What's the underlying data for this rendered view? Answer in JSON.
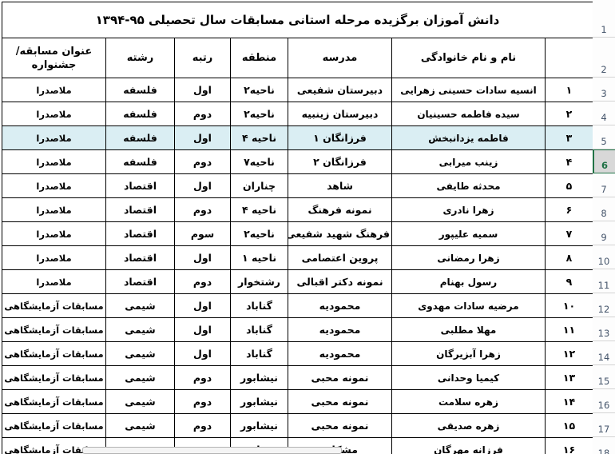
{
  "title": "دانش آموزان برگزیده مرحله استانی مسابقات سال تحصیلی ۹۵-۱۳۹۴",
  "header": {
    "rownum": "",
    "name": "نام و نام خانوادگی",
    "school": "مدرسه",
    "district": "منطقه",
    "rank": "رتبه",
    "field": "رشته",
    "contest_line1": "عنوان مسابقه/",
    "contest_line2": "جشنواره"
  },
  "rows": [
    {
      "num": "۱",
      "name": "انسیه سادات حسینی زهرایی",
      "school": "دبیرستان شفیعی",
      "district": "ناحیه۲",
      "rank": "اول",
      "field": "فلسفه",
      "contest": "ملاصدرا",
      "highlight": false
    },
    {
      "num": "۲",
      "name": "سیده فاطمه حسینیان",
      "school": "دبیرستان زینبیه",
      "district": "ناحیه۲",
      "rank": "دوم",
      "field": "فلسفه",
      "contest": "ملاصدرا",
      "highlight": false
    },
    {
      "num": "۳",
      "name": "فاطمه یزدانبخش",
      "school": "فرزانگان ۱",
      "district": "ناحیه ۴",
      "rank": "اول",
      "field": "فلسفه",
      "contest": "ملاصدرا",
      "highlight": true
    },
    {
      "num": "۴",
      "name": "زینب میرابی",
      "school": "فرزانگان ۲",
      "district": "ناحیه۷",
      "rank": "دوم",
      "field": "فلسفه",
      "contest": "ملاصدرا",
      "highlight": false
    },
    {
      "num": "۵",
      "name": "محدثه طایفی",
      "school": "شاهد",
      "district": "چناران",
      "rank": "اول",
      "field": "اقتصاد",
      "contest": "ملاصدرا",
      "highlight": false
    },
    {
      "num": "۶",
      "name": "زهرا نادری",
      "school": "نمونه فرهنگ",
      "district": "ناحیه ۴",
      "rank": "دوم",
      "field": "اقتصاد",
      "contest": "ملاصدرا",
      "highlight": false
    },
    {
      "num": "۷",
      "name": "سمیه علیپور",
      "school": "فرهنگ شهید شفیعی",
      "district": "ناحیه۲",
      "rank": "سوم",
      "field": "اقتصاد",
      "contest": "ملاصدرا",
      "highlight": false
    },
    {
      "num": "۸",
      "name": "زهرا رمضانی",
      "school": "پروین اعتصامی",
      "district": "ناحیه ۱",
      "rank": "اول",
      "field": "اقتصاد",
      "contest": "ملاصدرا",
      "highlight": false
    },
    {
      "num": "۹",
      "name": "رسول بهنام",
      "school": "نمونه دکتر اقبالی",
      "district": "رشتخوار",
      "rank": "دوم",
      "field": "اقتصاد",
      "contest": "ملاصدرا",
      "highlight": false
    },
    {
      "num": "۱۰",
      "name": "مرضیه سادات مهدوی",
      "school": "محمودیه",
      "district": "گناباد",
      "rank": "اول",
      "field": "شیمی",
      "contest": "مسابقات آزمایشگاهی",
      "highlight": false
    },
    {
      "num": "۱۱",
      "name": "مهلا مطلبی",
      "school": "محمودیه",
      "district": "گناباد",
      "rank": "اول",
      "field": "شیمی",
      "contest": "مسابقات آزمایشگاهی",
      "highlight": false
    },
    {
      "num": "۱۲",
      "name": "زهرا آبزیرگان",
      "school": "محمودیه",
      "district": "گناباد",
      "rank": "اول",
      "field": "شیمی",
      "contest": "مسابقات آزمایشگاهی",
      "highlight": false
    },
    {
      "num": "۱۳",
      "name": "کیمیا وحدانی",
      "school": "نمونه محبی",
      "district": "نیشابور",
      "rank": "دوم",
      "field": "شیمی",
      "contest": "مسابقات آزمایشگاهی",
      "highlight": false
    },
    {
      "num": "۱۴",
      "name": "زهره سلامت",
      "school": "نمونه محبی",
      "district": "نیشابور",
      "rank": "دوم",
      "field": "شیمی",
      "contest": "مسابقات آزمایشگاهی",
      "highlight": false
    },
    {
      "num": "۱۵",
      "name": "زهره صدیقی",
      "school": "نمونه محبی",
      "district": "نیشابور",
      "rank": "دوم",
      "field": "شیمی",
      "contest": "مسابقات آزمایشگاهی",
      "highlight": false
    },
    {
      "num": "۱۶",
      "name": "فرزانه مهرگان",
      "school": "مشکات",
      "district": "خواف",
      "rank": "سوم",
      "field": "شیمی",
      "contest": "مسابقات آزمایشگاهی",
      "highlight": false
    }
  ],
  "gutter": {
    "labels": [
      "1",
      "2",
      "3",
      "4",
      "5",
      "6",
      "7",
      "8",
      "9",
      "10",
      "11",
      "12",
      "13",
      "14",
      "15",
      "16",
      "17",
      "18"
    ],
    "selected": "6"
  },
  "colors": {
    "highlight_fill": "#daeef3",
    "selection_green": "#217346",
    "gutter_text": "#44546a",
    "grid_border": "#000000"
  }
}
